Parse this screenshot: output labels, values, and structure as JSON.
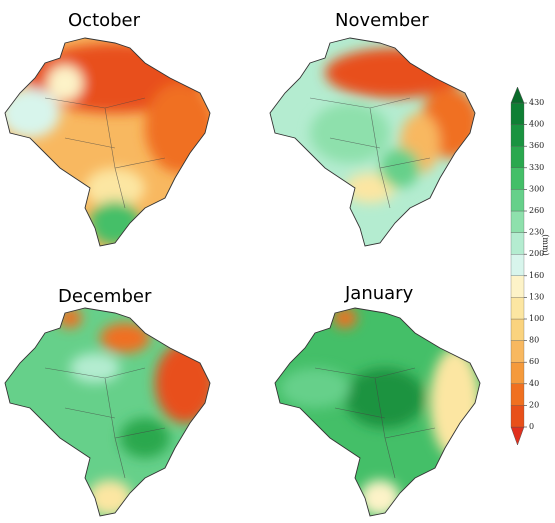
{
  "maps": [
    {
      "title": "October"
    },
    {
      "title": "November"
    },
    {
      "title": "December"
    },
    {
      "title": "January"
    }
  ],
  "colorbar": {
    "label": "(mm)",
    "ticks": [
      0,
      20,
      40,
      60,
      80,
      100,
      130,
      160,
      200,
      230,
      260,
      300,
      330,
      360,
      400,
      430
    ],
    "colors": [
      "#e0301e",
      "#e8501a",
      "#f07020",
      "#f59a3c",
      "#f8b860",
      "#fad37e",
      "#fce6a2",
      "#fdf3c8",
      "#d8f5ec",
      "#b4ecd0",
      "#8ee0ac",
      "#66d08a",
      "#44bf68",
      "#2aa84e",
      "#1a9340",
      "#0f7f34",
      "#0a6a2a"
    ]
  }
}
